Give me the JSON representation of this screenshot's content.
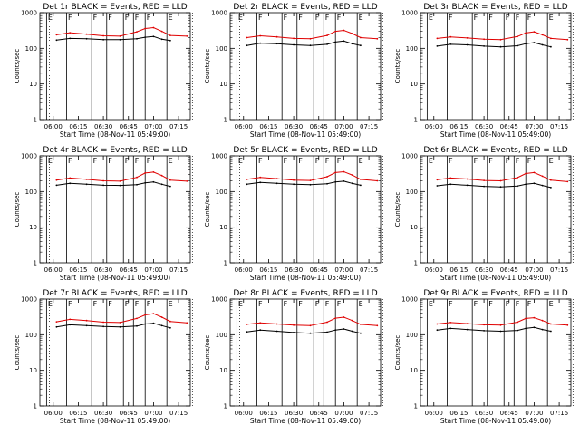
{
  "figure": {
    "x_tick_labels": [
      "06:00",
      "06:15",
      "06:30",
      "06:45",
      "07:00",
      "07:15"
    ],
    "y_tick_labels": [
      "1",
      "10",
      "100",
      "1000"
    ],
    "ylabel": "Counts/sec",
    "xlabel": "Start Time (08-Nov-11 05:49:00)",
    "legend_note": "BLACK = Events, RED = LLD",
    "colors": {
      "events": "#000000",
      "lld": "#e00000"
    }
  },
  "chart_data": [
    {
      "type": "line",
      "title": "Det 1r BLACK = Events, RED = LLD",
      "xlabel": "Start Time (08-Nov-11 05:49:00)",
      "ylabel": "Counts/sec",
      "y_scale": "log",
      "ylim": [
        1,
        1000
      ],
      "xlim": [
        "05:52",
        "07:22"
      ],
      "flag_times": [
        "05:56",
        "06:08",
        "06:23",
        "06:32",
        "06:42",
        "06:48",
        "06:55",
        "07:08"
      ],
      "flag_labels": [
        "E",
        "F",
        "F",
        "F",
        "F",
        "F",
        "F",
        "E"
      ],
      "x": [
        "06:02",
        "06:10",
        "06:20",
        "06:30",
        "06:40",
        "06:50",
        "06:55",
        "07:00",
        "07:05",
        "07:10",
        "07:20"
      ],
      "series": [
        {
          "name": "LLD",
          "color": "#e00000",
          "values": [
            240,
            275,
            250,
            225,
            220,
            290,
            360,
            380,
            300,
            230,
            220
          ]
        },
        {
          "name": "Events",
          "color": "#000000",
          "values": [
            170,
            190,
            185,
            175,
            175,
            185,
            205,
            215,
            180,
            165,
            null
          ]
        }
      ]
    },
    {
      "type": "line",
      "title": "Det 2r BLACK = Events, RED = LLD",
      "xlabel": "Start Time (08-Nov-11 05:49:00)",
      "ylabel": "Counts/sec",
      "y_scale": "log",
      "ylim": [
        1,
        1000
      ],
      "xlim": [
        "05:52",
        "07:22"
      ],
      "flag_times": [
        "05:56",
        "06:08",
        "06:23",
        "06:32",
        "06:42",
        "06:48",
        "06:55",
        "07:08"
      ],
      "flag_labels": [
        "E",
        "F",
        "F",
        "F",
        "F",
        "F",
        "F",
        "E"
      ],
      "x": [
        "06:02",
        "06:10",
        "06:20",
        "06:30",
        "06:40",
        "06:50",
        "06:55",
        "07:00",
        "07:05",
        "07:10",
        "07:20"
      ],
      "series": [
        {
          "name": "LLD",
          "color": "#e00000",
          "values": [
            200,
            225,
            210,
            190,
            185,
            230,
            300,
            320,
            260,
            200,
            185
          ]
        },
        {
          "name": "Events",
          "color": "#000000",
          "values": [
            120,
            140,
            135,
            125,
            120,
            130,
            150,
            160,
            135,
            120,
            null
          ]
        }
      ]
    },
    {
      "type": "line",
      "title": "Det 3r BLACK = Events, RED = LLD",
      "xlabel": "Start Time (08-Nov-11 05:49:00)",
      "ylabel": "Counts/sec",
      "y_scale": "log",
      "ylim": [
        1,
        1000
      ],
      "xlim": [
        "05:52",
        "07:22"
      ],
      "flag_times": [
        "05:56",
        "06:08",
        "06:23",
        "06:32",
        "06:42",
        "06:48",
        "06:55",
        "07:08"
      ],
      "flag_labels": [
        "E",
        "F",
        "F",
        "F",
        "F",
        "F",
        "F",
        "E"
      ],
      "x": [
        "06:02",
        "06:10",
        "06:20",
        "06:30",
        "06:40",
        "06:50",
        "06:55",
        "07:00",
        "07:05",
        "07:10",
        "07:20"
      ],
      "series": [
        {
          "name": "LLD",
          "color": "#e00000",
          "values": [
            190,
            210,
            195,
            180,
            175,
            215,
            270,
            290,
            240,
            190,
            175
          ]
        },
        {
          "name": "Events",
          "color": "#000000",
          "values": [
            115,
            130,
            125,
            115,
            110,
            118,
            135,
            145,
            125,
            110,
            null
          ]
        }
      ]
    },
    {
      "type": "line",
      "title": "Det 4r BLACK = Events, RED = LLD",
      "xlabel": "Start Time (08-Nov-11 05:49:00)",
      "ylabel": "Counts/sec",
      "y_scale": "log",
      "ylim": [
        1,
        1000
      ],
      "xlim": [
        "05:52",
        "07:22"
      ],
      "flag_times": [
        "05:56",
        "06:08",
        "06:23",
        "06:32",
        "06:42",
        "06:48",
        "06:55",
        "07:08"
      ],
      "flag_labels": [
        "E",
        "F",
        "F",
        "F",
        "F",
        "F",
        "F",
        "E"
      ],
      "x": [
        "06:02",
        "06:10",
        "06:20",
        "06:30",
        "06:40",
        "06:50",
        "06:55",
        "07:00",
        "07:05",
        "07:10",
        "07:20"
      ],
      "series": [
        {
          "name": "LLD",
          "color": "#e00000",
          "values": [
            210,
            240,
            220,
            200,
            195,
            250,
            330,
            350,
            280,
            210,
            195
          ]
        },
        {
          "name": "Events",
          "color": "#000000",
          "values": [
            150,
            170,
            160,
            150,
            148,
            155,
            175,
            185,
            160,
            140,
            null
          ]
        }
      ]
    },
    {
      "type": "line",
      "title": "Det 5r BLACK = Events, RED = LLD",
      "xlabel": "Start Time (08-Nov-11 05:49:00)",
      "ylabel": "Counts/sec",
      "y_scale": "log",
      "ylim": [
        1,
        1000
      ],
      "xlim": [
        "05:52",
        "07:22"
      ],
      "flag_times": [
        "05:56",
        "06:08",
        "06:23",
        "06:32",
        "06:42",
        "06:48",
        "06:55",
        "07:08"
      ],
      "flag_labels": [
        "E",
        "F",
        "F",
        "F",
        "F",
        "F",
        "F",
        "E"
      ],
      "x": [
        "06:02",
        "06:10",
        "06:20",
        "06:30",
        "06:40",
        "06:50",
        "06:55",
        "07:00",
        "07:05",
        "07:10",
        "07:20"
      ],
      "series": [
        {
          "name": "LLD",
          "color": "#e00000",
          "values": [
            220,
            250,
            230,
            210,
            205,
            260,
            340,
            360,
            290,
            220,
            200
          ]
        },
        {
          "name": "Events",
          "color": "#000000",
          "values": [
            160,
            180,
            170,
            160,
            155,
            165,
            185,
            195,
            170,
            150,
            null
          ]
        }
      ]
    },
    {
      "type": "line",
      "title": "Det 6r BLACK = Events, RED = LLD",
      "xlabel": "Start Time (08-Nov-11 05:49:00)",
      "ylabel": "Counts/sec",
      "y_scale": "log",
      "ylim": [
        1,
        1000
      ],
      "xlim": [
        "05:52",
        "07:22"
      ],
      "flag_times": [
        "05:56",
        "06:08",
        "06:23",
        "06:32",
        "06:42",
        "06:48",
        "06:55",
        "07:08"
      ],
      "flag_labels": [
        "E",
        "F",
        "F",
        "F",
        "F",
        "F",
        "F",
        "E"
      ],
      "x": [
        "06:02",
        "06:10",
        "06:20",
        "06:30",
        "06:40",
        "06:50",
        "06:55",
        "07:00",
        "07:05",
        "07:10",
        "07:20"
      ],
      "series": [
        {
          "name": "LLD",
          "color": "#e00000",
          "values": [
            215,
            240,
            225,
            205,
            200,
            245,
            320,
            340,
            270,
            210,
            190
          ]
        },
        {
          "name": "Events",
          "color": "#000000",
          "values": [
            145,
            160,
            150,
            140,
            135,
            142,
            160,
            170,
            148,
            130,
            null
          ]
        }
      ]
    },
    {
      "type": "line",
      "title": "Det 7r BLACK = Events, RED = LLD",
      "xlabel": "Start Time (08-Nov-11 05:49:00)",
      "ylabel": "Counts/sec",
      "y_scale": "log",
      "ylim": [
        1,
        1000
      ],
      "xlim": [
        "05:52",
        "07:22"
      ],
      "flag_times": [
        "05:56",
        "06:08",
        "06:23",
        "06:32",
        "06:42",
        "06:48",
        "06:55",
        "07:08"
      ],
      "flag_labels": [
        "E",
        "F",
        "F",
        "F",
        "F",
        "F",
        "F",
        "E"
      ],
      "x": [
        "06:02",
        "06:10",
        "06:20",
        "06:30",
        "06:40",
        "06:50",
        "06:55",
        "07:00",
        "07:05",
        "07:10",
        "07:20"
      ],
      "series": [
        {
          "name": "LLD",
          "color": "#e00000",
          "values": [
            230,
            270,
            250,
            225,
            220,
            285,
            360,
            390,
            310,
            235,
            215
          ]
        },
        {
          "name": "Events",
          "color": "#000000",
          "values": [
            165,
            190,
            180,
            170,
            165,
            175,
            200,
            210,
            180,
            155,
            null
          ]
        }
      ]
    },
    {
      "type": "line",
      "title": "Det 8r BLACK = Events, RED = LLD",
      "xlabel": "Start Time (08-Nov-11 05:49:00)",
      "ylabel": "Counts/sec",
      "y_scale": "log",
      "ylim": [
        1,
        1000
      ],
      "xlim": [
        "05:52",
        "07:22"
      ],
      "flag_times": [
        "05:56",
        "06:08",
        "06:23",
        "06:32",
        "06:42",
        "06:48",
        "06:55",
        "07:08"
      ],
      "flag_labels": [
        "E",
        "F",
        "F",
        "F",
        "F",
        "F",
        "F",
        "E"
      ],
      "x": [
        "06:02",
        "06:10",
        "06:20",
        "06:30",
        "06:40",
        "06:50",
        "06:55",
        "07:00",
        "07:05",
        "07:10",
        "07:20"
      ],
      "series": [
        {
          "name": "LLD",
          "color": "#e00000",
          "values": [
            195,
            215,
            200,
            185,
            180,
            225,
            290,
            310,
            250,
            195,
            180
          ]
        },
        {
          "name": "Events",
          "color": "#000000",
          "values": [
            120,
            135,
            125,
            115,
            110,
            118,
            135,
            145,
            125,
            110,
            null
          ]
        }
      ]
    },
    {
      "type": "line",
      "title": "Det 9r BLACK = Events, RED = LLD",
      "xlabel": "Start Time (08-Nov-11 05:49:00)",
      "ylabel": "Counts/sec",
      "y_scale": "log",
      "ylim": [
        1,
        1000
      ],
      "xlim": [
        "05:52",
        "07:22"
      ],
      "flag_times": [
        "05:56",
        "06:08",
        "06:23",
        "06:32",
        "06:42",
        "06:48",
        "06:55",
        "07:08"
      ],
      "flag_labels": [
        "E",
        "F",
        "F",
        "F",
        "F",
        "F",
        "F",
        "E"
      ],
      "x": [
        "06:02",
        "06:10",
        "06:20",
        "06:30",
        "06:40",
        "06:50",
        "06:55",
        "07:00",
        "07:05",
        "07:10",
        "07:20"
      ],
      "series": [
        {
          "name": "LLD",
          "color": "#e00000",
          "values": [
            200,
            220,
            205,
            190,
            185,
            225,
            285,
            300,
            250,
            200,
            185
          ]
        },
        {
          "name": "Events",
          "color": "#000000",
          "values": [
            135,
            150,
            140,
            130,
            125,
            132,
            150,
            160,
            140,
            125,
            null
          ]
        }
      ]
    }
  ]
}
